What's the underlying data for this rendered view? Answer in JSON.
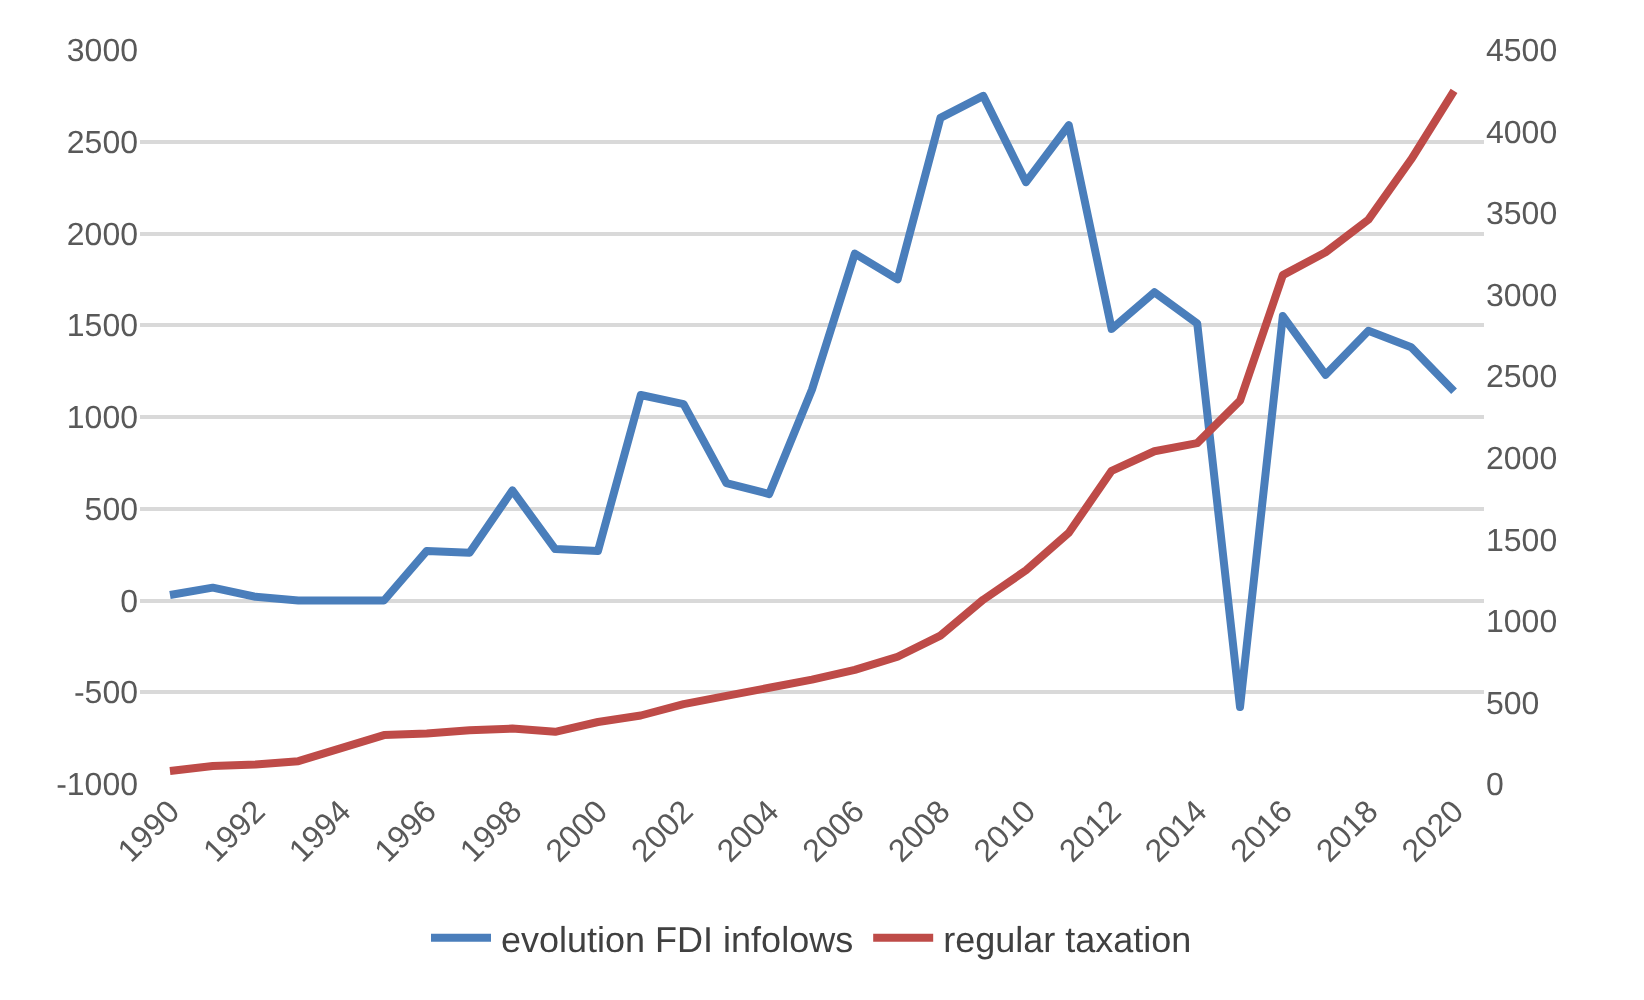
{
  "chart_data": {
    "type": "line",
    "categories": [
      "1990",
      null,
      "1992",
      null,
      "1994",
      null,
      "1996",
      null,
      "1998",
      null,
      "2000",
      null,
      "2002",
      null,
      "2004",
      null,
      "2006",
      null,
      "2008",
      null,
      "2010",
      null,
      "2012",
      null,
      "2014",
      null,
      "2016",
      null,
      "2018",
      null,
      "2020"
    ],
    "series": [
      {
        "name": "evolution FDI infolows",
        "color": "#4a7ebb",
        "values": [
          30,
          70,
          20,
          0,
          0,
          0,
          270,
          260,
          600,
          280,
          270,
          1120,
          1070,
          640,
          580,
          1150,
          1890,
          1750,
          2630,
          2750,
          2280,
          2590,
          1480,
          1680,
          1510,
          -580,
          1550,
          1230,
          1470,
          1380,
          1140
        ]
      },
      {
        "name": "regular taxation",
        "color": "#be4b48",
        "axis": "y2",
        "values": [
          80,
          110,
          120,
          140,
          220,
          300,
          310,
          330,
          340,
          320,
          380,
          420,
          490,
          540,
          590,
          640,
          700,
          780,
          910,
          1130,
          1310,
          1540,
          1920,
          2040,
          2090,
          2350,
          3120,
          3260,
          3460,
          3830,
          4250
        ]
      }
    ],
    "ylim": [
      -1000,
      3000
    ],
    "yticks": [
      -1000,
      -500,
      0,
      500,
      1000,
      1500,
      2000,
      2500,
      3000
    ],
    "y2lim": [
      0,
      4500
    ],
    "y2ticks": [
      0,
      500,
      1000,
      1500,
      2000,
      2500,
      3000,
      3500,
      4000,
      4500
    ],
    "grid": "y",
    "legend": "bottom",
    "marker": "none",
    "line_style": "solid"
  }
}
